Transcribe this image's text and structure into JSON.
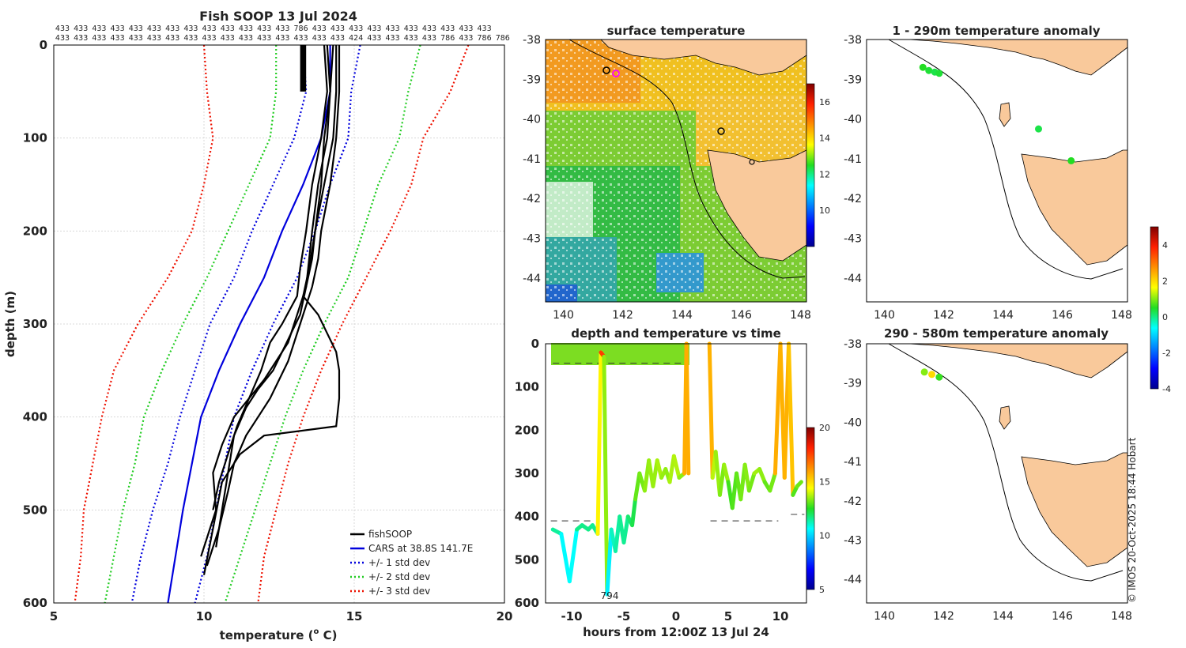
{
  "chart_data": [
    {
      "type": "line",
      "id": "profile",
      "title": "Fish SOOP 13 Jul 2024",
      "xlabel": "temperature (",
      "xlabel_sup": "o",
      "xlabel_unit": " C)",
      "ylabel": "depth (m)",
      "xlim": [
        5,
        20
      ],
      "ylim": [
        600,
        0
      ],
      "xticks": [
        5,
        10,
        15,
        20
      ],
      "yticks": [
        0,
        100,
        200,
        300,
        400,
        500,
        600
      ],
      "header_row1": [
        "433",
        "433",
        "433",
        "433",
        "433",
        "433",
        "433",
        "433",
        "433",
        "433",
        "433",
        "433",
        "433",
        "786",
        "433",
        "433",
        "433",
        "433",
        "433",
        "433",
        "433",
        "433",
        "433",
        "433"
      ],
      "header_row2": [
        "433",
        "433",
        "433",
        "433",
        "433",
        "433",
        "433",
        "433",
        "433",
        "433",
        "433",
        "433",
        "433",
        "433",
        "433",
        "433",
        "424",
        "433",
        "433",
        "433",
        "433",
        "786",
        "433",
        "786",
        "786"
      ],
      "legend": [
        "fishSOOP",
        "CARS at 38.8S 141.7E",
        "+/- 1 std dev",
        "+/- 2 std dev",
        "+/- 3 std dev"
      ],
      "series": [
        {
          "name": "CARS mean",
          "color": "#0000dd",
          "x": [
            14.2,
            14.2,
            13.9,
            13.3,
            12.6,
            12.0,
            11.2,
            10.5,
            9.9,
            9.3,
            8.8
          ],
          "y": [
            0,
            50,
            100,
            150,
            200,
            250,
            300,
            350,
            400,
            500,
            600
          ]
        },
        {
          "name": "-1 std",
          "color": "#0000dd",
          "x": [
            13.3,
            13.4,
            13.0,
            12.3,
            11.6,
            11.0,
            10.2,
            9.7,
            9.2,
            8.8,
            8.3,
            7.9,
            7.6
          ],
          "y": [
            0,
            50,
            100,
            150,
            200,
            250,
            300,
            350,
            400,
            450,
            500,
            550,
            600
          ]
        },
        {
          "name": "+1 std",
          "color": "#0000dd",
          "x": [
            15.2,
            14.9,
            14.8,
            14.2,
            13.7,
            13.1,
            12.3,
            11.6,
            11.0,
            10.7,
            10.4,
            10.1,
            9.7
          ],
          "y": [
            0,
            50,
            100,
            150,
            200,
            250,
            300,
            350,
            400,
            450,
            500,
            550,
            600
          ]
        },
        {
          "name": "-2 std",
          "color": "#22cc22",
          "x": [
            12.4,
            12.4,
            12.2,
            11.5,
            10.8,
            10.1,
            9.3,
            8.6,
            8.0,
            7.7,
            7.3,
            7.0,
            6.7
          ],
          "y": [
            0,
            50,
            100,
            150,
            200,
            250,
            300,
            350,
            400,
            450,
            500,
            550,
            600
          ]
        },
        {
          "name": "+2 std",
          "color": "#22cc22",
          "x": [
            17.2,
            16.8,
            16.5,
            15.8,
            15.3,
            14.8,
            14.0,
            13.3,
            12.7,
            12.2,
            11.7,
            11.2,
            10.7
          ],
          "y": [
            0,
            50,
            100,
            150,
            200,
            250,
            300,
            350,
            400,
            450,
            500,
            550,
            600
          ]
        },
        {
          "name": "-3 std",
          "color": "#ee1100",
          "x": [
            10.0,
            10.1,
            10.3,
            10.0,
            9.6,
            8.8,
            7.8,
            7.0,
            6.6,
            6.3,
            6.0,
            5.9,
            5.7
          ],
          "y": [
            0,
            50,
            100,
            150,
            200,
            250,
            300,
            350,
            400,
            450,
            500,
            550,
            600
          ]
        },
        {
          "name": "+3 std",
          "color": "#ee1100",
          "x": [
            18.8,
            18.2,
            17.3,
            16.9,
            16.2,
            15.4,
            14.6,
            13.9,
            13.3,
            12.8,
            12.4,
            12.0,
            11.8
          ],
          "y": [
            0,
            50,
            100,
            150,
            200,
            250,
            300,
            350,
            400,
            450,
            500,
            550,
            600
          ]
        }
      ],
      "fish_traces": [
        {
          "x": [
            14.1,
            14.2,
            14.1,
            13.8,
            13.6,
            13.5,
            13.4,
            13.1,
            12.8,
            12.4,
            12.0,
            11.5,
            11.0,
            10.6,
            10.3,
            10.4,
            10.1,
            9.9
          ],
          "y": [
            0,
            50,
            100,
            150,
            200,
            230,
            260,
            290,
            320,
            340,
            360,
            380,
            400,
            430,
            460,
            500,
            530,
            550
          ]
        },
        {
          "x": [
            14.4,
            14.4,
            14.3,
            14.0,
            13.7,
            13.6,
            13.4,
            13.2,
            12.9,
            12.6,
            12.3,
            11.8,
            11.4,
            11.0,
            10.8,
            10.6,
            10.4
          ],
          "y": [
            0,
            50,
            100,
            150,
            200,
            230,
            260,
            290,
            310,
            330,
            350,
            370,
            390,
            420,
            460,
            500,
            540
          ]
        },
        {
          "x": [
            14.5,
            14.5,
            14.4,
            14.2,
            13.9,
            13.8,
            13.6,
            13.4,
            13.2,
            13.0,
            12.8,
            12.5,
            12.2,
            11.8,
            11.4,
            11.0,
            10.8,
            10.5,
            10.1
          ],
          "y": [
            0,
            50,
            100,
            150,
            200,
            230,
            260,
            280,
            300,
            320,
            340,
            360,
            380,
            400,
            420,
            450,
            480,
            520,
            560
          ]
        },
        {
          "x": [
            14.0,
            14.1,
            13.9,
            13.6,
            13.4,
            13.2,
            13.1,
            12.6,
            12.2,
            11.9,
            11.5,
            11.1,
            10.8,
            10.5,
            10.3
          ],
          "y": [
            0,
            50,
            100,
            150,
            200,
            240,
            270,
            300,
            320,
            350,
            380,
            410,
            440,
            470,
            500
          ]
        },
        {
          "x": [
            14.3,
            14.2,
            14.0,
            13.9,
            13.7,
            13.5,
            13.3,
            13.8,
            14.1,
            14.4,
            14.5,
            14.5,
            14.4,
            12.0,
            11.2,
            10.6,
            10.3,
            10.0
          ],
          "y": [
            0,
            50,
            100,
            150,
            200,
            240,
            270,
            290,
            310,
            330,
            350,
            380,
            410,
            420,
            440,
            470,
            520,
            570
          ]
        }
      ]
    },
    {
      "type": "heatmap",
      "id": "sst",
      "title": "surface temperature",
      "xlim": [
        139.4,
        148.2
      ],
      "ylim": [
        -44.6,
        -38.0
      ],
      "xticks": [
        140,
        142,
        144,
        146,
        148
      ],
      "yticks": [
        -38,
        -39,
        -40,
        -41,
        -42,
        -43,
        -44
      ],
      "colorbar": {
        "min": 8,
        "max": 17,
        "ticks": [
          10,
          12,
          14,
          16
        ]
      }
    },
    {
      "type": "scatter",
      "id": "depth_time",
      "title": "depth and temperature vs time",
      "xlabel": "hours from 12:00Z 13 Jul 24",
      "xlim": [
        -12.5,
        12.5
      ],
      "ylim": [
        600,
        0
      ],
      "xticks": [
        -10,
        -5,
        0,
        5,
        10
      ],
      "yticks": [
        0,
        100,
        200,
        300,
        400,
        500,
        600
      ],
      "annotation": "794",
      "colorbar": {
        "min": 5,
        "max": 20,
        "ticks": [
          5,
          10,
          15,
          20
        ]
      },
      "segments": [
        {
          "t": [
            -11.8,
            -11.0,
            -10.2,
            -9.5,
            -9.0,
            -8.4,
            -8.0,
            -7.5,
            -7.2,
            -6.9,
            -6.6,
            -6.2,
            -5.8,
            -5.4,
            -5.0,
            -4.6,
            -4.2,
            -3.9
          ],
          "d": [
            430,
            440,
            550,
            430,
            420,
            430,
            420,
            440,
            20,
            30,
            580,
            430,
            480,
            400,
            460,
            400,
            420,
            360
          ]
        },
        {
          "t": [
            -3.9,
            -3.5,
            -3.0,
            -2.6,
            -2.2,
            -1.8,
            -1.4,
            -1.0,
            -0.6,
            -0.2,
            0.3,
            0.8,
            1.0,
            1.2
          ],
          "d": [
            360,
            300,
            340,
            270,
            330,
            270,
            310,
            290,
            320,
            260,
            310,
            300,
            0,
            300
          ]
        },
        {
          "t": [
            3.2,
            3.5,
            3.8,
            4.2,
            4.6,
            5.0,
            5.4,
            5.8,
            6.2,
            6.6,
            7.0,
            7.5,
            8.0,
            8.5,
            9.0,
            9.5,
            10.0,
            10.4,
            10.8,
            11.2,
            11.6,
            12.0
          ],
          "d": [
            0,
            310,
            250,
            350,
            280,
            320,
            380,
            300,
            360,
            280,
            340,
            300,
            290,
            320,
            340,
            300,
            0,
            310,
            0,
            350,
            330,
            320
          ]
        }
      ],
      "ref_lines": [
        {
          "t0": -12.0,
          "t1": -8.0,
          "d": 410
        },
        {
          "t0": 3.3,
          "t1": 9.8,
          "d": 410
        },
        {
          "t0": 11.0,
          "t1": 12.3,
          "d": 395
        }
      ]
    },
    {
      "type": "scatter",
      "id": "anom_shallow",
      "title": "1 - 290m temperature anomaly",
      "xlim": [
        139.4,
        148.2
      ],
      "ylim": [
        -44.6,
        -38.0
      ],
      "xticks": [
        140,
        142,
        144,
        146,
        148
      ],
      "yticks": [
        -38,
        -39,
        -40,
        -41,
        -42,
        -43,
        -44
      ],
      "points": [
        {
          "lon": 141.3,
          "lat": -38.7,
          "anom": 0.5
        },
        {
          "lon": 141.5,
          "lat": -38.78,
          "anom": 0.4
        },
        {
          "lon": 141.7,
          "lat": -38.82,
          "anom": 0.3
        },
        {
          "lon": 141.85,
          "lat": -38.85,
          "anom": 0.4
        },
        {
          "lon": 145.2,
          "lat": -40.25,
          "anom": 0.3
        },
        {
          "lon": 146.3,
          "lat": -41.05,
          "anom": 0.5
        }
      ]
    },
    {
      "type": "scatter",
      "id": "anom_deep",
      "title": "290 - 580m temperature anomaly",
      "xlim": [
        139.4,
        148.2
      ],
      "ylim": [
        -44.6,
        -38.0
      ],
      "xticks": [
        140,
        142,
        144,
        146,
        148
      ],
      "yticks": [
        -38,
        -39,
        -40,
        -41,
        -42,
        -43,
        -44
      ],
      "points": [
        {
          "lon": 141.35,
          "lat": -38.72,
          "anom": 1.0
        },
        {
          "lon": 141.6,
          "lat": -38.78,
          "anom": 2.0
        },
        {
          "lon": 141.85,
          "lat": -38.85,
          "anom": 0.6
        }
      ],
      "colorbar": {
        "min": -4,
        "max": 5,
        "ticks": [
          -4,
          -2,
          0,
          2,
          4
        ]
      }
    }
  ],
  "credit": "© IMOS 20-Oct-2025 18:44 Hobart"
}
